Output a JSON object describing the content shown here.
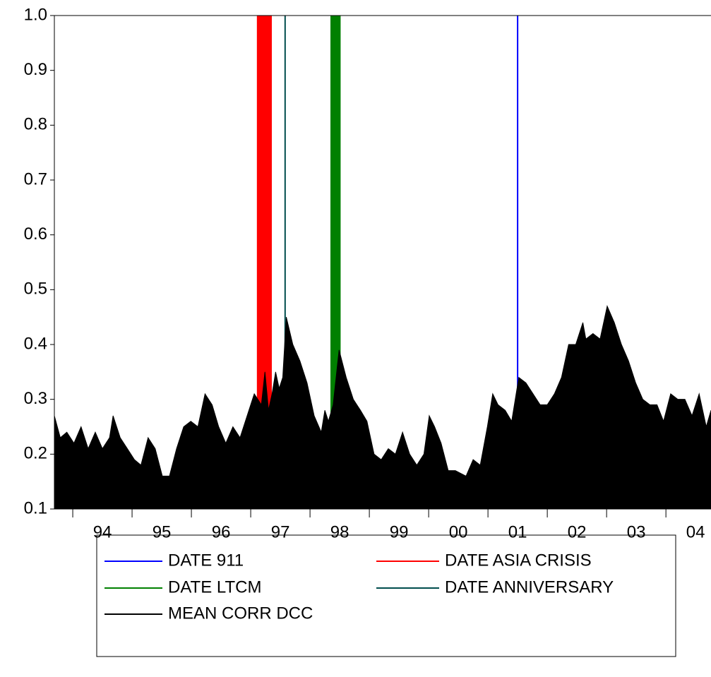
{
  "chart_data": {
    "type": "area",
    "xlim": [
      1993.69,
      2004.76
    ],
    "ylim": [
      0.1,
      1.0
    ],
    "yticks": [
      0.1,
      0.2,
      0.3,
      0.4,
      0.5,
      0.6,
      0.7,
      0.8,
      0.9,
      {
        "value": 1.0,
        "label": "1.0"
      }
    ],
    "xticks": [
      {
        "value": 1994,
        "label": "94"
      },
      {
        "value": 1995,
        "label": "95"
      },
      {
        "value": 1996,
        "label": "96"
      },
      {
        "value": 1997,
        "label": "97"
      },
      {
        "value": 1998,
        "label": "98"
      },
      {
        "value": 1999,
        "label": "99"
      },
      {
        "value": 2000,
        "label": "00"
      },
      {
        "value": 2001,
        "label": "01"
      },
      {
        "value": 2002,
        "label": "02"
      },
      {
        "value": 2003,
        "label": "03"
      },
      {
        "value": 2004,
        "label": "04"
      }
    ],
    "series": [
      {
        "name": "DATE 911",
        "color": "#0000ff",
        "x": [
          2001.5
        ],
        "values": [
          1.0
        ]
      },
      {
        "name": "DATE ASIA CRISIS",
        "color": "#ff0000",
        "x": [
          1997.11,
          1997.35
        ],
        "values": [
          1.0,
          1.0
        ]
      },
      {
        "name": "DATE LTCM",
        "color": "#008000",
        "x": [
          1998.35,
          1998.51
        ],
        "values": [
          1.0,
          1.0
        ]
      },
      {
        "name": "DATE ANNIVERSARY",
        "color": "#004d4d",
        "x": [
          1997.58
        ],
        "values": [
          1.0
        ]
      },
      {
        "name": "MEAN CORR DCC",
        "color": "#000000",
        "x": [
          1993.69,
          1993.79,
          1993.9,
          1994.02,
          1994.14,
          1994.26,
          1994.38,
          1994.5,
          1994.62,
          1994.68,
          1994.8,
          1994.92,
          1995.04,
          1995.15,
          1995.27,
          1995.39,
          1995.51,
          1995.63,
          1995.75,
          1995.87,
          1995.99,
          1996.11,
          1996.23,
          1996.35,
          1996.46,
          1996.58,
          1996.7,
          1996.82,
          1996.94,
          1997.06,
          1997.18,
          1997.24,
          1997.3,
          1997.36,
          1997.42,
          1997.48,
          1997.54,
          1997.6,
          1997.71,
          1997.83,
          1997.95,
          1998.07,
          1998.19,
          1998.25,
          1998.31,
          1998.39,
          1998.49,
          1998.61,
          1998.73,
          1998.85,
          1998.96,
          1999.08,
          1999.2,
          1999.32,
          1999.44,
          1999.56,
          1999.68,
          1999.8,
          1999.92,
          2000.01,
          2000.1,
          2000.21,
          2000.33,
          2000.45,
          2000.63,
          2000.75,
          2000.87,
          2000.99,
          2001.08,
          2001.17,
          2001.29,
          2001.4,
          2001.52,
          2001.64,
          2001.76,
          2001.88,
          2002.0,
          2002.12,
          2002.24,
          2002.36,
          2002.48,
          2002.6,
          2002.65,
          2002.77,
          2002.89,
          2003.01,
          2003.13,
          2003.25,
          2003.37,
          2003.49,
          2003.61,
          2003.73,
          2003.85,
          2003.96,
          2004.08,
          2004.2,
          2004.32,
          2004.44,
          2004.56,
          2004.68,
          2004.76
        ],
        "values": [
          0.27,
          0.23,
          0.24,
          0.22,
          0.25,
          0.21,
          0.24,
          0.21,
          0.23,
          0.27,
          0.23,
          0.21,
          0.19,
          0.18,
          0.23,
          0.21,
          0.16,
          0.16,
          0.21,
          0.25,
          0.26,
          0.25,
          0.31,
          0.29,
          0.25,
          0.22,
          0.25,
          0.23,
          0.27,
          0.31,
          0.29,
          0.35,
          0.28,
          0.31,
          0.35,
          0.32,
          0.34,
          0.45,
          0.4,
          0.37,
          0.33,
          0.27,
          0.24,
          0.28,
          0.26,
          0.29,
          0.39,
          0.34,
          0.3,
          0.28,
          0.26,
          0.2,
          0.19,
          0.21,
          0.2,
          0.24,
          0.2,
          0.18,
          0.2,
          0.27,
          0.25,
          0.22,
          0.17,
          0.17,
          0.16,
          0.19,
          0.18,
          0.25,
          0.31,
          0.29,
          0.28,
          0.26,
          0.34,
          0.33,
          0.31,
          0.29,
          0.29,
          0.31,
          0.34,
          0.4,
          0.4,
          0.44,
          0.41,
          0.42,
          0.41,
          0.47,
          0.44,
          0.4,
          0.37,
          0.33,
          0.3,
          0.29,
          0.29,
          0.26,
          0.31,
          0.3,
          0.3,
          0.27,
          0.31,
          0.25,
          0.28
        ]
      }
    ]
  }
}
